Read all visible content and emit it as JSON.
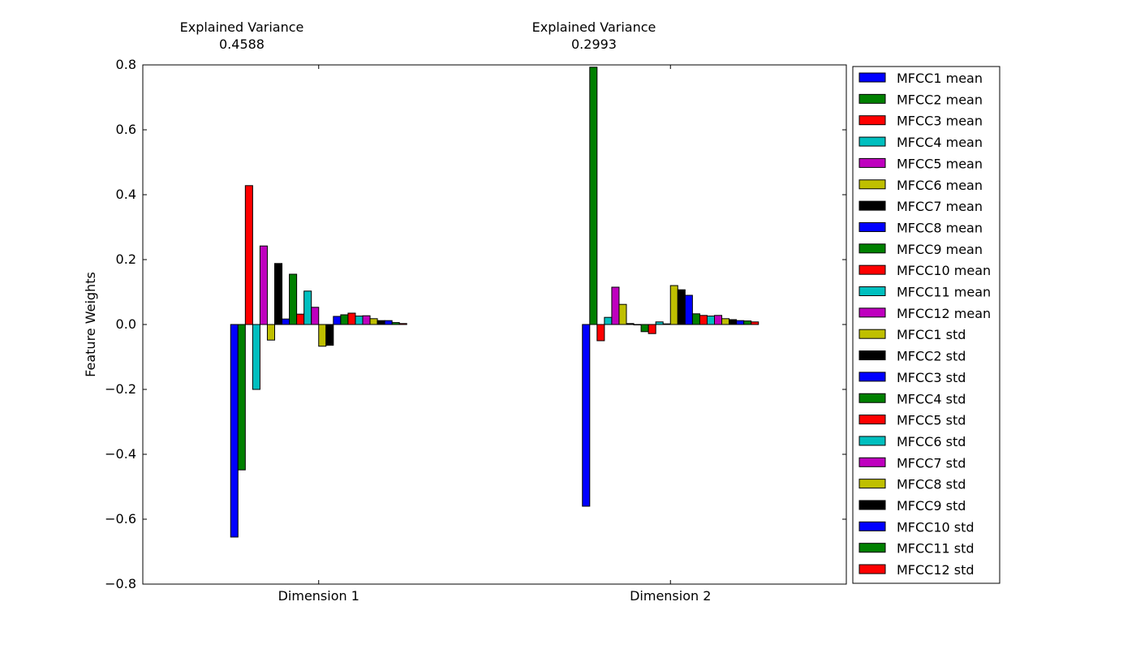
{
  "chart_data": {
    "type": "bar",
    "categories": [
      "Dimension 1",
      "Dimension 2"
    ],
    "annotations": [
      {
        "label": "Explained Variance",
        "value": "0.4588"
      },
      {
        "label": "Explained Variance",
        "value": "0.2993"
      }
    ],
    "ylabel": "Feature Weights",
    "ylim": [
      -0.8,
      0.8
    ],
    "yticks": [
      "0.8",
      "0.6",
      "0.4",
      "0.2",
      "0.0",
      "−0.2",
      "−0.4",
      "−0.6",
      "−0.8"
    ],
    "ytick_values": [
      0.8,
      0.6,
      0.4,
      0.2,
      0.0,
      -0.2,
      -0.4,
      -0.6,
      -0.8
    ],
    "legend_position": "outside-right",
    "series": [
      {
        "name": "MFCC1 mean",
        "color": "#0000ff",
        "values": [
          -0.655,
          -0.56
        ]
      },
      {
        "name": "MFCC2 mean",
        "color": "#008000",
        "values": [
          -0.448,
          0.793
        ]
      },
      {
        "name": "MFCC3 mean",
        "color": "#ff0000",
        "values": [
          0.428,
          -0.05
        ]
      },
      {
        "name": "MFCC4 mean",
        "color": "#00bfbf",
        "values": [
          -0.2,
          0.022
        ]
      },
      {
        "name": "MFCC5 mean",
        "color": "#bf00bf",
        "values": [
          0.242,
          0.115
        ]
      },
      {
        "name": "MFCC6 mean",
        "color": "#bfbf00",
        "values": [
          -0.048,
          0.062
        ]
      },
      {
        "name": "MFCC7 mean",
        "color": "#000000",
        "values": [
          0.188,
          0.003
        ]
      },
      {
        "name": "MFCC8 mean",
        "color": "#0000ff",
        "values": [
          0.017,
          0.0
        ]
      },
      {
        "name": "MFCC9 mean",
        "color": "#008000",
        "values": [
          0.155,
          -0.022
        ]
      },
      {
        "name": "MFCC10 mean",
        "color": "#ff0000",
        "values": [
          0.032,
          -0.028
        ]
      },
      {
        "name": "MFCC11 mean",
        "color": "#00bfbf",
        "values": [
          0.103,
          0.008
        ]
      },
      {
        "name": "MFCC12 mean",
        "color": "#bf00bf",
        "values": [
          0.053,
          0.002
        ]
      },
      {
        "name": "MFCC1 std",
        "color": "#bfbf00",
        "values": [
          -0.067,
          0.12
        ]
      },
      {
        "name": "MFCC2 std",
        "color": "#000000",
        "values": [
          -0.064,
          0.107
        ]
      },
      {
        "name": "MFCC3 std",
        "color": "#0000ff",
        "values": [
          0.025,
          0.09
        ]
      },
      {
        "name": "MFCC4 std",
        "color": "#008000",
        "values": [
          0.03,
          0.033
        ]
      },
      {
        "name": "MFCC5 std",
        "color": "#ff0000",
        "values": [
          0.035,
          0.028
        ]
      },
      {
        "name": "MFCC6 std",
        "color": "#00bfbf",
        "values": [
          0.026,
          0.026
        ]
      },
      {
        "name": "MFCC7 std",
        "color": "#bf00bf",
        "values": [
          0.027,
          0.028
        ]
      },
      {
        "name": "MFCC8 std",
        "color": "#bfbf00",
        "values": [
          0.018,
          0.018
        ]
      },
      {
        "name": "MFCC9 std",
        "color": "#000000",
        "values": [
          0.012,
          0.015
        ]
      },
      {
        "name": "MFCC10 std",
        "color": "#0000ff",
        "values": [
          0.012,
          0.012
        ]
      },
      {
        "name": "MFCC11 std",
        "color": "#008000",
        "values": [
          0.006,
          0.011
        ]
      },
      {
        "name": "MFCC12 std",
        "color": "#ff0000",
        "values": [
          0.003,
          0.008
        ]
      }
    ]
  }
}
